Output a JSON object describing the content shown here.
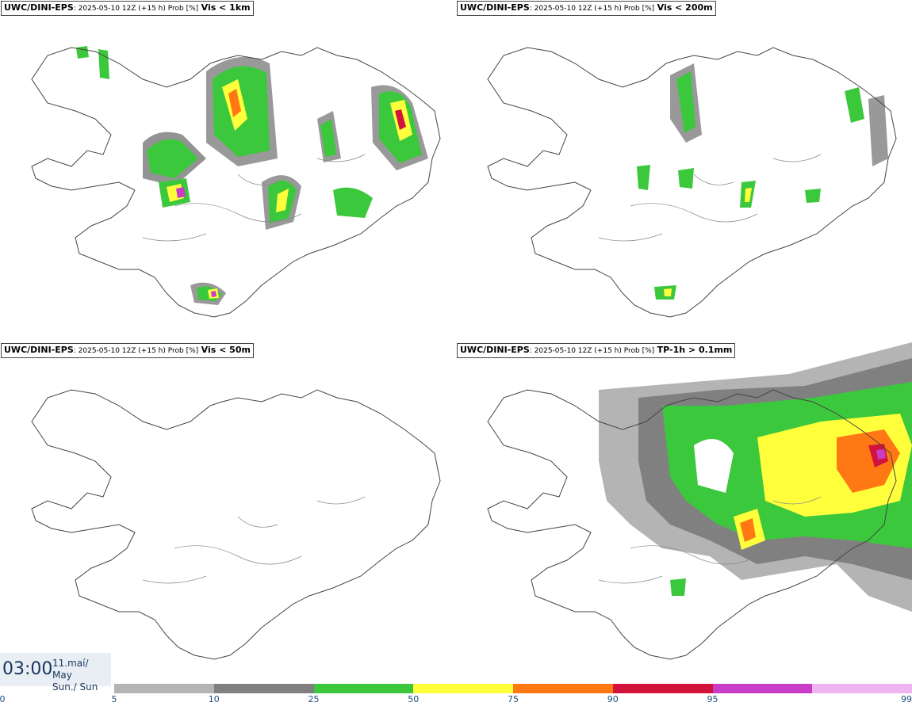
{
  "panels": [
    {
      "model": "UWC/DINI-EPS",
      "meta": ": 2025-05-10 12Z (+15 h) Prob [%]",
      "variable": "Vis < 1km"
    },
    {
      "model": "UWC/DINI-EPS",
      "meta": ": 2025-05-10 12Z (+15 h) Prob [%]",
      "variable": "Vis < 200m"
    },
    {
      "model": "UWC/DINI-EPS",
      "meta": ": 2025-05-10 12Z (+15 h) Prob [%]",
      "variable": "Vis < 50m"
    },
    {
      "model": "UWC/DINI-EPS",
      "meta": ": 2025-05-10 12Z (+15 h) Prob [%]",
      "variable": "TP-1h > 0.1mm"
    }
  ],
  "time": {
    "clock": "03:00",
    "date_line1": "11.maí/ May",
    "date_line2": "Sun./ Sun"
  },
  "legend": {
    "ticks": [
      "0",
      "5",
      "10",
      "25",
      "50",
      "75",
      "90",
      "95",
      "99"
    ],
    "colors": [
      "#b4b4b4",
      "#808080",
      "#3cc83c",
      "#ffff3c",
      "#ff7814",
      "#d2143c",
      "#c83cc8",
      "#f0b4f0"
    ]
  }
}
